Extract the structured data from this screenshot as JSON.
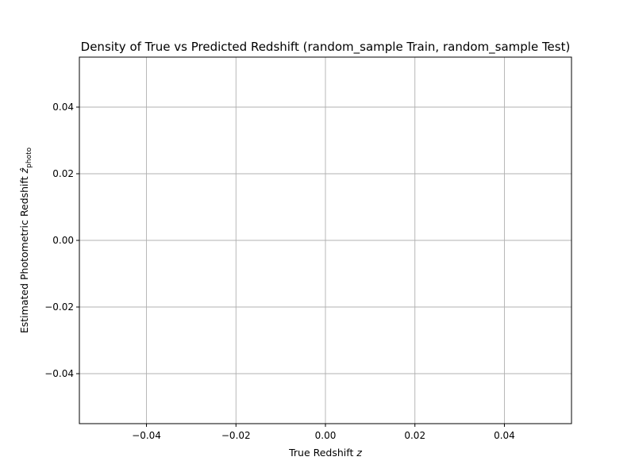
{
  "chart_data": {
    "type": "heatmap",
    "title": "Density of True vs Predicted Redshift (random_sample Train, random_sample Test)",
    "xlabel": "True Redshift z",
    "ylabel": "Estimated Photometric Redshift ẑphoto",
    "xlim": [
      -0.055,
      0.055
    ],
    "ylim": [
      -0.055,
      0.055
    ],
    "x_ticks": [
      -0.04,
      -0.02,
      0.0,
      0.02,
      0.04
    ],
    "y_ticks": [
      -0.04,
      -0.02,
      0.0,
      0.02,
      0.04
    ],
    "x_tick_labels": [
      "−0.04",
      "−0.02",
      "0.00",
      "0.02",
      "0.04"
    ],
    "y_tick_labels": [
      "−0.04",
      "−0.02",
      "0.00",
      "0.02",
      "0.04"
    ],
    "grid": true,
    "points": []
  }
}
